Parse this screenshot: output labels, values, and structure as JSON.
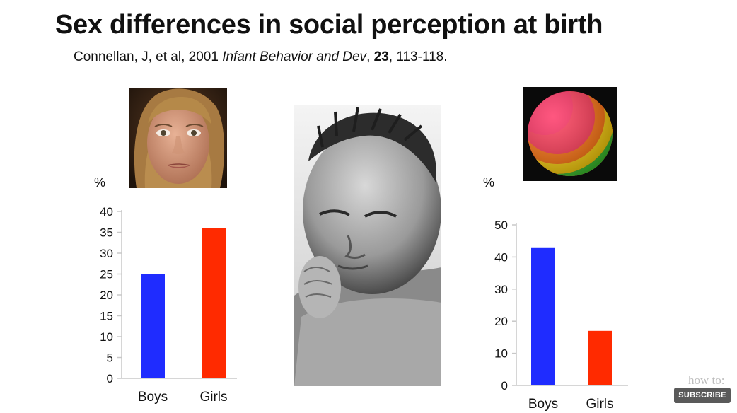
{
  "slide": {
    "title": "Sex differences in social perception at birth",
    "citation": {
      "authors": "Connellan, J, et al, 2001 ",
      "journal": "Infant Behavior and Dev",
      "sep1": ", ",
      "volume": "23",
      "pages": ", 113-118."
    }
  },
  "images": {
    "face": "face-photo",
    "baby": "newborn-photo",
    "ball": "striped-ball-photo"
  },
  "colors": {
    "boys": "#1f2cff",
    "girls": "#ff2a00"
  },
  "chart_data": [
    {
      "type": "bar",
      "title": "",
      "ylabel": "%",
      "xlabel": "",
      "categories": [
        "Boys",
        "Girls"
      ],
      "values": [
        25,
        36
      ],
      "ylim": [
        0,
        40
      ],
      "yticks": [
        0,
        5,
        10,
        15,
        20,
        25,
        30,
        35,
        40
      ],
      "colors": [
        "#1f2cff",
        "#ff2a00"
      ]
    },
    {
      "type": "bar",
      "title": "",
      "ylabel": "%",
      "xlabel": "",
      "categories": [
        "Boys",
        "Girls"
      ],
      "values": [
        43,
        17
      ],
      "ylim": [
        0,
        50
      ],
      "yticks": [
        0,
        10,
        20,
        30,
        40,
        50
      ],
      "colors": [
        "#1f2cff",
        "#ff2a00"
      ]
    }
  ],
  "overlay": {
    "watermark": "how to:",
    "subscribe_label": "SUBSCRIBE"
  }
}
